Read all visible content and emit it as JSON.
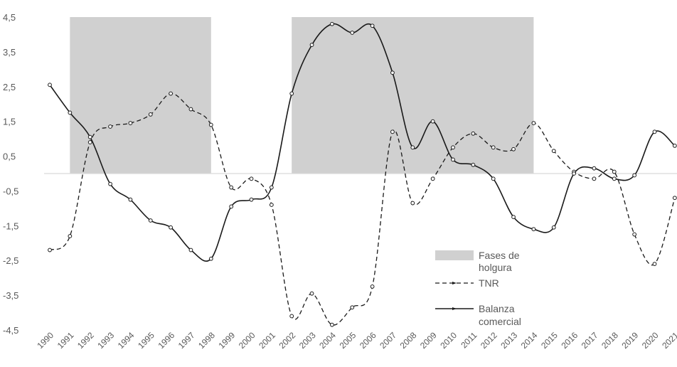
{
  "chart_data": {
    "type": "line",
    "title": "",
    "xlabel": "",
    "ylabel": "",
    "ylim": [
      -4.5,
      4.5
    ],
    "yticks": [
      "4,5",
      "3,5",
      "2,5",
      "1,5",
      "0,5",
      "-0,5",
      "-1,5",
      "-2,5",
      "-3,5",
      "-4,5"
    ],
    "ytick_values": [
      4.5,
      3.5,
      2.5,
      1.5,
      0.5,
      -0.5,
      -1.5,
      -2.5,
      -3.5,
      -4.5
    ],
    "x": [
      "1990",
      "1991",
      "1992",
      "1993",
      "1994",
      "1995",
      "1996",
      "1997",
      "1998",
      "1999",
      "2000",
      "2001",
      "2002",
      "2003",
      "2004",
      "2005",
      "2006",
      "2007",
      "2008",
      "2009",
      "2010",
      "2011",
      "2012",
      "2013",
      "2014",
      "2015",
      "2016",
      "2017",
      "2018",
      "2019",
      "2020",
      "2021"
    ],
    "shaded_periods": [
      {
        "start": "1991",
        "end": "1998"
      },
      {
        "start": "2002",
        "end": "2014"
      }
    ],
    "grid": false,
    "legend_position": "bottom-right",
    "legend": {
      "shaded_label": "Fases de holgura",
      "tnr_label": "TNR",
      "balanza_label": "Balanza comercial"
    },
    "series": [
      {
        "name": "TNR",
        "style": "dashed",
        "values": [
          -2.2,
          -1.8,
          0.9,
          1.35,
          1.45,
          1.7,
          2.3,
          1.85,
          1.4,
          -0.4,
          -0.15,
          -0.9,
          -4.1,
          -3.45,
          -4.35,
          -3.85,
          -3.25,
          1.2,
          -0.85,
          -0.15,
          0.75,
          1.15,
          0.75,
          0.7,
          1.45,
          0.65,
          0.05,
          -0.15,
          0.05,
          -1.75,
          -2.6,
          -0.7
        ]
      },
      {
        "name": "Balanza comercial",
        "style": "solid",
        "values": [
          2.55,
          1.75,
          1.05,
          -0.3,
          -0.75,
          -1.35,
          -1.55,
          -2.2,
          -2.45,
          -0.95,
          -0.75,
          -0.4,
          2.3,
          3.7,
          4.3,
          4.05,
          4.25,
          2.9,
          0.75,
          1.5,
          0.4,
          0.25,
          -0.15,
          -1.25,
          -1.6,
          -1.55,
          0.0,
          0.15,
          -0.15,
          -0.05,
          1.2,
          0.8
        ]
      }
    ],
    "colors": {
      "shade": "#d0d0d0",
      "tnr": "#1a1a1a",
      "balanza": "#1a1a1a",
      "zero_line": "#d9d9d9",
      "marker_fill": "#ffffff"
    }
  }
}
